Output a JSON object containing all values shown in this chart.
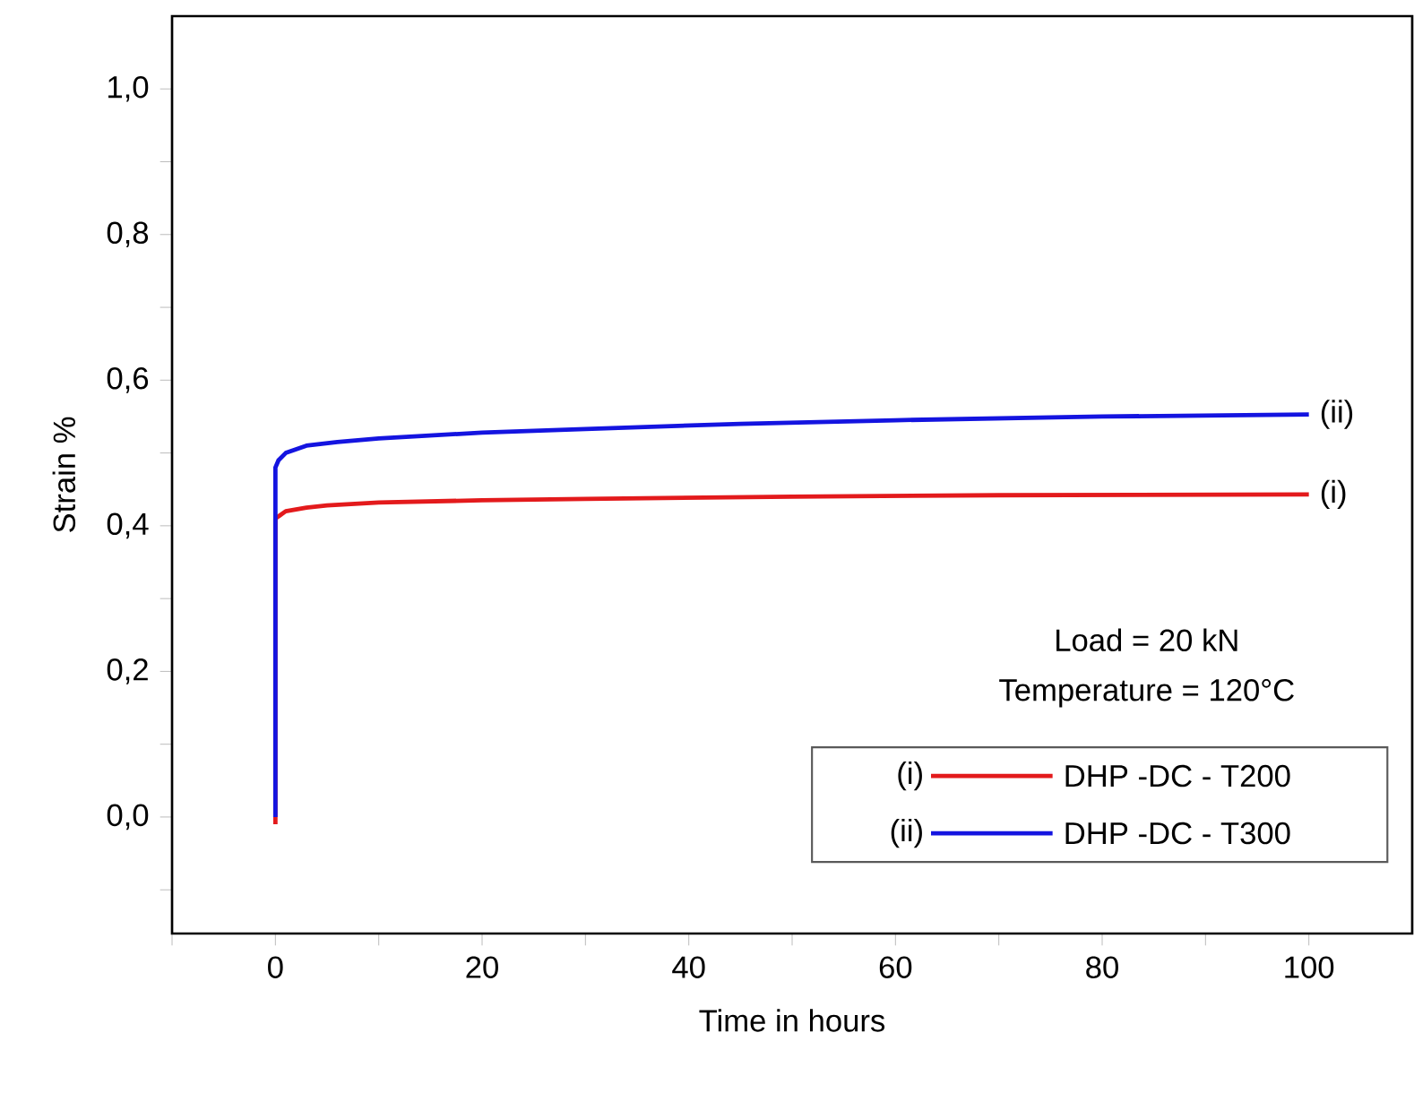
{
  "chart_data": {
    "type": "line",
    "xlabel": "Time in hours",
    "ylabel": "Strain %",
    "xlim": [
      -10,
      110
    ],
    "ylim": [
      -0.16,
      1.1
    ],
    "xticks": [
      {
        "value": -10,
        "label": null
      },
      0,
      {
        "value": 10,
        "label": null
      },
      20,
      {
        "value": 30,
        "label": null
      },
      40,
      {
        "value": 50,
        "label": null
      },
      60,
      {
        "value": 70,
        "label": null
      },
      80,
      {
        "value": 90,
        "label": null
      },
      100
    ],
    "yticks": [
      {
        "value": -0.1,
        "label": null
      },
      {
        "value": 0,
        "label": "0,0"
      },
      {
        "value": 0.1,
        "label": null
      },
      {
        "value": 0.2,
        "label": "0,2"
      },
      {
        "value": 0.3,
        "label": null
      },
      {
        "value": 0.4,
        "label": "0,4"
      },
      {
        "value": 0.5,
        "label": null
      },
      {
        "value": 0.6,
        "label": "0,6"
      },
      {
        "value": 0.7,
        "label": null
      },
      {
        "value": 0.8,
        "label": "0,8"
      },
      {
        "value": 0.9,
        "label": null
      },
      {
        "value": 1.0,
        "label": "1,0"
      }
    ],
    "grid": false,
    "legend": "bottom right",
    "line_style": "solid",
    "series": [
      {
        "name": "DHP -DC - T200",
        "color": "#e31a1c",
        "x": [
          0,
          0,
          0.5,
          1,
          3,
          5,
          10,
          20,
          30,
          50,
          70,
          100
        ],
        "values": [
          -0.01,
          0.41,
          0.415,
          0.42,
          0.425,
          0.428,
          0.432,
          0.435,
          0.437,
          0.44,
          0.442,
          0.443
        ]
      },
      {
        "name": "DHP -DC - T300",
        "color": "#1414e0",
        "x": [
          0,
          0,
          0.3,
          1,
          3,
          6,
          10,
          20,
          30,
          45,
          60,
          80,
          100
        ],
        "values": [
          0,
          0.48,
          0.49,
          0.5,
          0.51,
          0.515,
          0.52,
          0.528,
          0.533,
          0.54,
          0.545,
          0.55,
          0.553
        ]
      }
    ],
    "annotations": [
      {
        "text": "(ii)",
        "x": 100,
        "y": 0.553
      },
      {
        "text": "(i)",
        "x": 100,
        "y": 0.443
      },
      "Load = 20 kN",
      "Temperature = 120°C",
      "(i)",
      "(ii)"
    ]
  }
}
